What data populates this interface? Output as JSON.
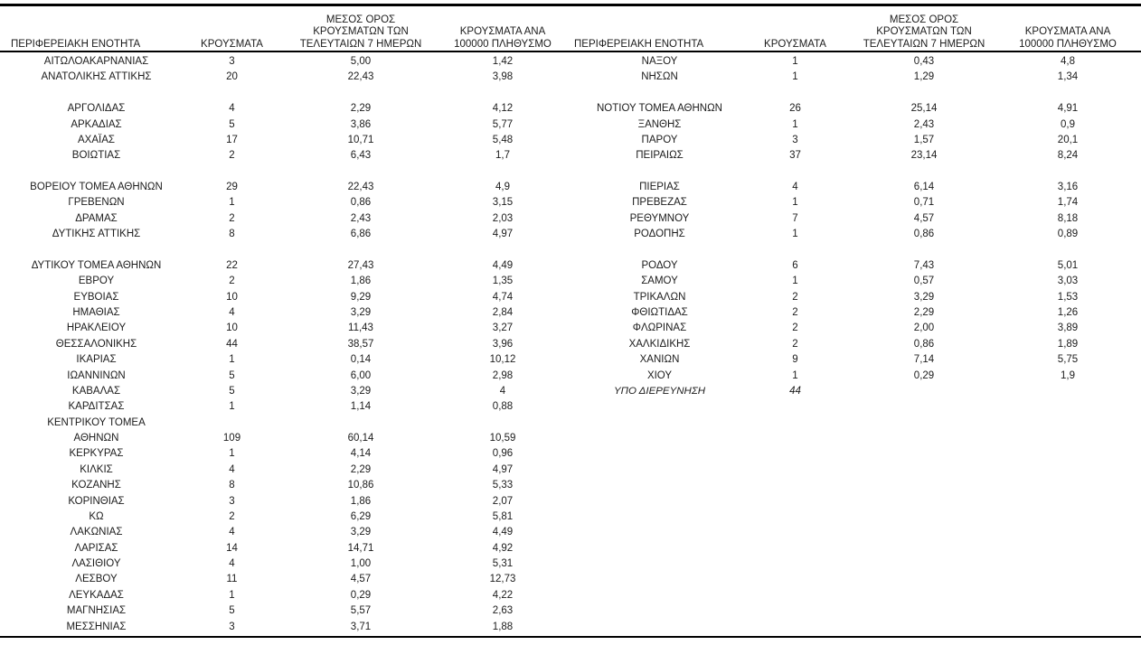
{
  "document": {
    "headers": {
      "region": "ΠΕΡΙΦΕΡΕΙΑΚΗ ΕΝΟΤΗΤΑ",
      "cases": "ΚΡΟΥΣΜΑΤΑ",
      "avg7_lines": [
        "ΜΕΣΟΣ ΟΡΟΣ",
        "ΚΡΟΥΣΜΑΤΩΝ ΤΩΝ",
        "ΤΕΛΕΥΤΑΙΩΝ 7 ΗΜΕΡΩΝ"
      ],
      "per100k_lines": [
        "ΚΡΟΥΣΜΑΤΑ ΑΝΑ",
        "100000 ΠΛΗΘΥΣΜΟ"
      ]
    },
    "tables": [
      {
        "name": "regional-units-left",
        "rows": [
          {
            "c": [
              "ΑΙΤΩΛΟΑΚΑΡΝΑΝΙΑΣ",
              "3",
              "5,00",
              "1,42"
            ]
          },
          {
            "c": [
              "ΑΝΑΤΟΛΙΚΗΣ ΑΤΤΙΚΗΣ",
              "20",
              "22,43",
              "3,98"
            ]
          },
          {
            "blank": true
          },
          {
            "c": [
              "ΑΡΓΟΛΙΔΑΣ",
              "4",
              "2,29",
              "4,12"
            ]
          },
          {
            "c": [
              "ΑΡΚΑΔΙΑΣ",
              "5",
              "3,86",
              "5,77"
            ]
          },
          {
            "c": [
              "ΑΧΑΪΑΣ",
              "17",
              "10,71",
              "5,48"
            ]
          },
          {
            "c": [
              "ΒΟΙΩΤΙΑΣ",
              "2",
              "6,43",
              "1,7"
            ]
          },
          {
            "blank": true
          },
          {
            "c": [
              "ΒΟΡΕΙΟΥ ΤΟΜΕΑ ΑΘΗΝΩΝ",
              "29",
              "22,43",
              "4,9"
            ]
          },
          {
            "c": [
              "ΓΡΕΒΕΝΩΝ",
              "1",
              "0,86",
              "3,15"
            ]
          },
          {
            "c": [
              "ΔΡΑΜΑΣ",
              "2",
              "2,43",
              "2,03"
            ]
          },
          {
            "c": [
              "ΔΥΤΙΚΗΣ ΑΤΤΙΚΗΣ",
              "8",
              "6,86",
              "4,97"
            ]
          },
          {
            "blank": true
          },
          {
            "c": [
              "ΔΥΤΙΚΟΥ ΤΟΜΕΑ ΑΘΗΝΩΝ",
              "22",
              "27,43",
              "4,49"
            ]
          },
          {
            "c": [
              "ΕΒΡΟΥ",
              "2",
              "1,86",
              "1,35"
            ]
          },
          {
            "c": [
              "ΕΥΒΟΙΑΣ",
              "10",
              "9,29",
              "4,74"
            ]
          },
          {
            "c": [
              "ΗΜΑΘΙΑΣ",
              "4",
              "3,29",
              "2,84"
            ]
          },
          {
            "c": [
              "ΗΡΑΚΛΕΙΟΥ",
              "10",
              "11,43",
              "3,27"
            ]
          },
          {
            "c": [
              "ΘΕΣΣΑΛΟΝΙΚΗΣ",
              "44",
              "38,57",
              "3,96"
            ]
          },
          {
            "c": [
              "ΙΚΑΡΙΑΣ",
              "1",
              "0,14",
              "10,12"
            ]
          },
          {
            "c": [
              "ΙΩΑΝΝΙΝΩΝ",
              "5",
              "6,00",
              "2,98"
            ]
          },
          {
            "c": [
              "ΚΑΒΑΛΑΣ",
              "5",
              "3,29",
              "4"
            ]
          },
          {
            "c": [
              "ΚΑΡΔΙΤΣΑΣ",
              "1",
              "1,14",
              "0,88"
            ]
          },
          {
            "c": [
              "ΚΕΝΤΡΙΚΟΥ ΤΟΜΕΑ",
              "",
              "",
              ""
            ]
          },
          {
            "c": [
              "ΑΘΗΝΩΝ",
              "109",
              "60,14",
              "10,59"
            ]
          },
          {
            "c": [
              "ΚΕΡΚΥΡΑΣ",
              "1",
              "4,14",
              "0,96"
            ]
          },
          {
            "c": [
              "ΚΙΛΚΙΣ",
              "4",
              "2,29",
              "4,97"
            ]
          },
          {
            "c": [
              "ΚΟΖΑΝΗΣ",
              "8",
              "10,86",
              "5,33"
            ]
          },
          {
            "c": [
              "ΚΟΡΙΝΘΙΑΣ",
              "3",
              "1,86",
              "2,07"
            ]
          },
          {
            "c": [
              "ΚΩ",
              "2",
              "6,29",
              "5,81"
            ]
          },
          {
            "c": [
              "ΛΑΚΩΝΙΑΣ",
              "4",
              "3,29",
              "4,49"
            ]
          },
          {
            "c": [
              "ΛΑΡΙΣΑΣ",
              "14",
              "14,71",
              "4,92"
            ]
          },
          {
            "c": [
              "ΛΑΣΙΘΙΟΥ",
              "4",
              "1,00",
              "5,31"
            ]
          },
          {
            "c": [
              "ΛΕΣΒΟΥ",
              "11",
              "4,57",
              "12,73"
            ]
          },
          {
            "c": [
              "ΛΕΥΚΑΔΑΣ",
              "1",
              "0,29",
              "4,22"
            ]
          },
          {
            "c": [
              "ΜΑΓΝΗΣΙΑΣ",
              "5",
              "5,57",
              "2,63"
            ]
          },
          {
            "c": [
              "ΜΕΣΣΗΝΙΑΣ",
              "3",
              "3,71",
              "1,88"
            ]
          }
        ]
      },
      {
        "name": "regional-units-right",
        "rows": [
          {
            "c": [
              "ΝΑΞΟΥ",
              "1",
              "0,43",
              "4,8"
            ]
          },
          {
            "c": [
              "ΝΗΣΩΝ",
              "1",
              "1,29",
              "1,34"
            ]
          },
          {
            "blank": true
          },
          {
            "c": [
              "ΝΟΤΙΟΥ ΤΟΜΕΑ ΑΘΗΝΩΝ",
              "26",
              "25,14",
              "4,91"
            ]
          },
          {
            "c": [
              "ΞΑΝΘΗΣ",
              "1",
              "2,43",
              "0,9"
            ]
          },
          {
            "c": [
              "ΠΑΡΟΥ",
              "3",
              "1,57",
              "20,1"
            ]
          },
          {
            "c": [
              "ΠΕΙΡΑΙΩΣ",
              "37",
              "23,14",
              "8,24"
            ]
          },
          {
            "blank": true
          },
          {
            "c": [
              "ΠΙΕΡΙΑΣ",
              "4",
              "6,14",
              "3,16"
            ]
          },
          {
            "c": [
              "ΠΡΕΒΕΖΑΣ",
              "1",
              "0,71",
              "1,74"
            ]
          },
          {
            "c": [
              "ΡΕΘΥΜΝΟΥ",
              "7",
              "4,57",
              "8,18"
            ]
          },
          {
            "c": [
              "ΡΟΔΟΠΗΣ",
              "1",
              "0,86",
              "0,89"
            ]
          },
          {
            "blank": true
          },
          {
            "c": [
              "ΡΟΔΟΥ",
              "6",
              "7,43",
              "5,01"
            ]
          },
          {
            "c": [
              "ΣΑΜΟΥ",
              "1",
              "0,57",
              "3,03"
            ]
          },
          {
            "c": [
              "ΤΡΙΚΑΛΩΝ",
              "2",
              "3,29",
              "1,53"
            ]
          },
          {
            "c": [
              "ΦΘΙΩΤΙΔΑΣ",
              "2",
              "2,29",
              "1,26"
            ]
          },
          {
            "c": [
              "ΦΛΩΡΙΝΑΣ",
              "2",
              "2,00",
              "3,89"
            ]
          },
          {
            "c": [
              "ΧΑΛΚΙΔΙΚΗΣ",
              "2",
              "0,86",
              "1,89"
            ]
          },
          {
            "c": [
              "ΧΑΝΙΩΝ",
              "9",
              "7,14",
              "5,75"
            ]
          },
          {
            "c": [
              "ΧΙΟΥ",
              "1",
              "0,29",
              "1,9"
            ]
          },
          {
            "c": [
              "ΥΠΟ ΔΙΕΡΕΥΝΗΣΗ",
              "44",
              "",
              ""
            ],
            "italic": true
          }
        ]
      }
    ]
  }
}
